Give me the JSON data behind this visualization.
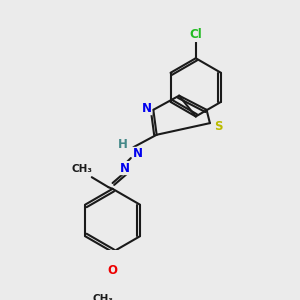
{
  "background_color": "#ebebeb",
  "bond_color": "#1a1a1a",
  "atom_colors": {
    "N": "#0000ee",
    "S": "#bbbb00",
    "Cl": "#22bb22",
    "O": "#ee0000",
    "C": "#1a1a1a",
    "H": "#888888"
  },
  "figsize": [
    3.0,
    3.0
  ],
  "dpi": 100,
  "lw": 1.5,
  "fs": 8.5,
  "fs_small": 7.5
}
